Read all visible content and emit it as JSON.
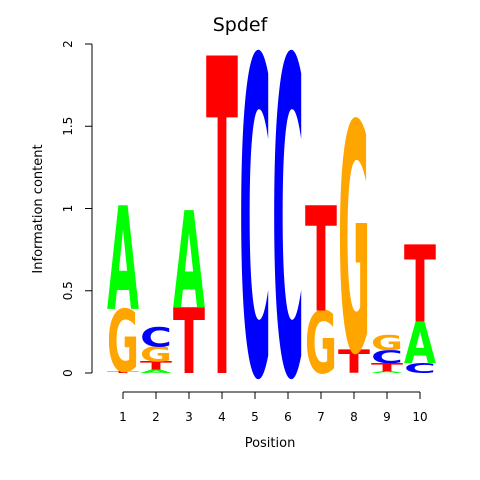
{
  "chart_data": {
    "type": "sequence-logo",
    "title": "Spdef",
    "xlabel": "Position",
    "ylabel": "Information content",
    "ylim": [
      0,
      2
    ],
    "y_ticks": [
      0,
      0.5,
      1,
      1.5,
      2
    ],
    "y_tick_labels": [
      "0",
      "0.5",
      "1",
      "1.5",
      "2"
    ],
    "x_ticks": [
      1,
      2,
      3,
      4,
      5,
      6,
      7,
      8,
      9,
      10
    ],
    "x_tick_labels": [
      "1",
      "2",
      "3",
      "4",
      "5",
      "6",
      "7",
      "8",
      "9",
      "10"
    ],
    "colors": {
      "A": "#00ff00",
      "C": "#0000ff",
      "G": "#ffa500",
      "T": "#ff0000"
    },
    "positions": [
      {
        "position": 1,
        "letters": [
          {
            "base": "T",
            "height": 0.01
          },
          {
            "base": "G",
            "height": 0.38
          },
          {
            "base": "A",
            "height": 0.63
          }
        ]
      },
      {
        "position": 2,
        "letters": [
          {
            "base": "A",
            "height": 0.02
          },
          {
            "base": "T",
            "height": 0.05
          },
          {
            "base": "G",
            "height": 0.09
          },
          {
            "base": "C",
            "height": 0.12
          }
        ]
      },
      {
        "position": 3,
        "letters": [
          {
            "base": "T",
            "height": 0.4
          },
          {
            "base": "A",
            "height": 0.59
          }
        ]
      },
      {
        "position": 4,
        "letters": [
          {
            "base": "T",
            "height": 1.93
          }
        ]
      },
      {
        "position": 5,
        "letters": [
          {
            "base": "C",
            "height": 1.93
          }
        ]
      },
      {
        "position": 6,
        "letters": [
          {
            "base": "C",
            "height": 1.93
          }
        ]
      },
      {
        "position": 7,
        "letters": [
          {
            "base": "G",
            "height": 0.38
          },
          {
            "base": "T",
            "height": 0.64
          }
        ]
      },
      {
        "position": 8,
        "letters": [
          {
            "base": "T",
            "height": 0.14
          },
          {
            "base": "G",
            "height": 1.39
          }
        ]
      },
      {
        "position": 9,
        "letters": [
          {
            "base": "A",
            "height": 0.01
          },
          {
            "base": "T",
            "height": 0.05
          },
          {
            "base": "C",
            "height": 0.08
          },
          {
            "base": "G",
            "height": 0.09
          }
        ]
      },
      {
        "position": 10,
        "letters": [
          {
            "base": "C",
            "height": 0.06
          },
          {
            "base": "A",
            "height": 0.25
          },
          {
            "base": "T",
            "height": 0.47
          }
        ]
      }
    ]
  }
}
